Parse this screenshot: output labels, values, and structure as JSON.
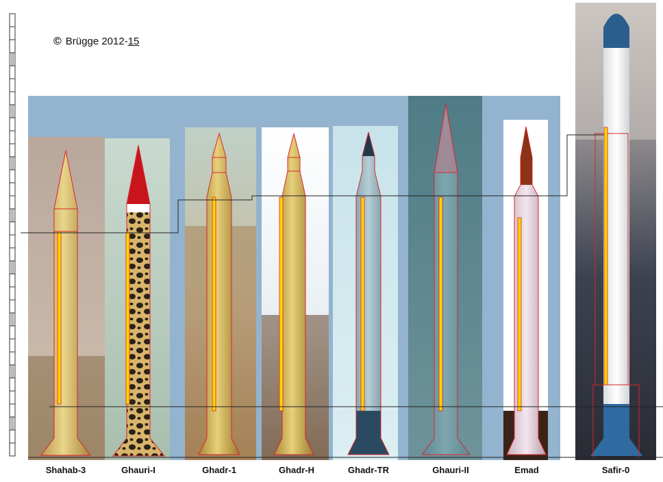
{
  "copyright": {
    "symbol": "©",
    "text": "Brügge 2012-",
    "suffix": "15"
  },
  "missiles": [
    {
      "name": "Shahab-3"
    },
    {
      "name": "Ghauri-I"
    },
    {
      "name": "Ghadr-1"
    },
    {
      "name": "Ghadr-H"
    },
    {
      "name": "Ghadr-TR"
    },
    {
      "name": "Ghauri-II"
    },
    {
      "name": "Emad"
    },
    {
      "name": "Safir-0"
    }
  ],
  "colors": {
    "backdrop_blue": "#93b3cf",
    "outline_red": "#d8262b",
    "engine_yellow": "#ffd400",
    "scale_gray": "#bdbdbd"
  }
}
